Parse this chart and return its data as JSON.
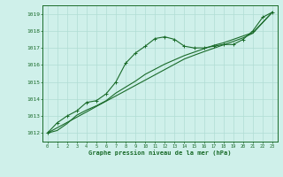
{
  "x": [
    0,
    1,
    2,
    3,
    4,
    5,
    6,
    7,
    8,
    9,
    10,
    11,
    12,
    13,
    14,
    15,
    16,
    17,
    18,
    19,
    20,
    21,
    22,
    23
  ],
  "y_actual": [
    1012.0,
    1012.6,
    1013.0,
    1013.3,
    1013.8,
    1013.9,
    1014.3,
    1015.0,
    1016.1,
    1016.7,
    1017.1,
    1017.55,
    1017.65,
    1017.5,
    1017.1,
    1017.0,
    1017.0,
    1017.1,
    1017.2,
    1017.2,
    1017.5,
    1018.0,
    1018.8,
    1019.1
  ],
  "y_trend": [
    1012.0,
    1012.15,
    1012.55,
    1013.05,
    1013.35,
    1013.6,
    1013.9,
    1014.35,
    1014.7,
    1015.05,
    1015.45,
    1015.75,
    1016.05,
    1016.3,
    1016.55,
    1016.75,
    1016.95,
    1017.15,
    1017.3,
    1017.5,
    1017.7,
    1017.9,
    1018.5,
    1019.1
  ],
  "y_linear": [
    1012.0,
    1012.31,
    1012.62,
    1012.93,
    1013.24,
    1013.56,
    1013.87,
    1014.18,
    1014.49,
    1014.8,
    1015.11,
    1015.42,
    1015.73,
    1016.04,
    1016.35,
    1016.57,
    1016.78,
    1016.98,
    1017.18,
    1017.38,
    1017.59,
    1017.86,
    1018.48,
    1019.1
  ],
  "bg_color": "#cff0ea",
  "line_color": "#1a6b2a",
  "grid_color": "#b0ddd4",
  "xlabel": "Graphe pression niveau de la mer (hPa)",
  "ylabel_ticks": [
    1012,
    1013,
    1014,
    1015,
    1016,
    1017,
    1018,
    1019
  ],
  "xlim": [
    -0.5,
    23.5
  ],
  "ylim": [
    1011.5,
    1019.5
  ]
}
